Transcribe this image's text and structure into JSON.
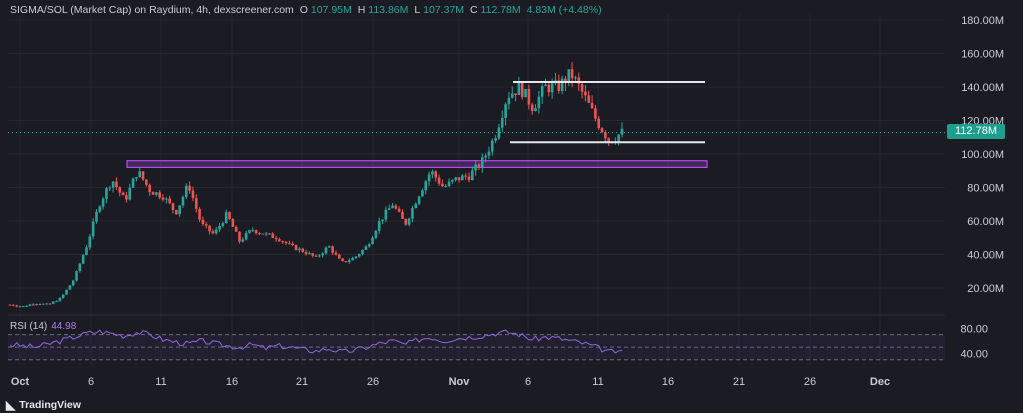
{
  "header": {
    "symbol": "SIGMA/SOL (Market Cap) on Raydium, 4h, dexscreener.com",
    "o_label": "O",
    "o_value": "107.95M",
    "h_label": "H",
    "h_value": "113.86M",
    "l_label": "L",
    "l_value": "107.37M",
    "c_label": "C",
    "c_value": "112.78M",
    "change": "4.83M (+4.48%)"
  },
  "rsi": {
    "label": "RSI (14)",
    "value": "44.98"
  },
  "last_price_tag": "112.78M",
  "branding": "TradingView",
  "colors": {
    "up": "#26a69a",
    "down": "#ef5350",
    "rsi": "#8e6ad8",
    "zone": "#b44ce8",
    "level": "#e6e6ea",
    "background": "#1b1b24",
    "grid": "#262633"
  },
  "chart_data": {
    "type": "candlestick",
    "x_tick_labels": [
      "Oct",
      "6",
      "11",
      "16",
      "21",
      "26",
      "Nov",
      "6",
      "11",
      "16",
      "21",
      "26",
      "Dec"
    ],
    "y_tick_labels": [
      "180.00M",
      "160.00M",
      "140.00M",
      "120.00M",
      "100.00M",
      "80.00M",
      "60.00M",
      "40.00M",
      "20.00M"
    ],
    "ylim": [
      0,
      190
    ],
    "y_unit": "M",
    "close_path": [
      [
        1,
        10
      ],
      [
        2,
        9
      ],
      [
        3,
        11
      ],
      [
        4,
        10
      ],
      [
        5,
        14
      ],
      [
        6,
        25
      ],
      [
        7,
        45
      ],
      [
        8,
        70
      ],
      [
        9,
        85
      ],
      [
        10,
        72
      ],
      [
        11,
        90
      ],
      [
        12,
        78
      ],
      [
        13,
        75
      ],
      [
        14,
        65
      ],
      [
        15,
        82
      ],
      [
        16,
        58
      ],
      [
        17,
        52
      ],
      [
        18,
        64
      ],
      [
        19,
        48
      ],
      [
        20,
        55
      ],
      [
        21,
        52
      ],
      [
        22,
        50
      ],
      [
        23,
        45
      ],
      [
        24,
        42
      ],
      [
        25,
        38
      ],
      [
        26,
        45
      ],
      [
        27,
        35
      ],
      [
        28,
        38
      ],
      [
        29,
        45
      ],
      [
        30,
        60
      ],
      [
        31,
        70
      ],
      [
        32,
        58
      ],
      [
        33,
        75
      ],
      [
        34,
        90
      ],
      [
        35,
        80
      ],
      [
        36,
        85
      ],
      [
        37,
        87
      ],
      [
        38,
        95
      ],
      [
        39,
        110
      ],
      [
        40,
        135
      ],
      [
        41,
        140
      ],
      [
        42,
        128
      ],
      [
        43,
        140
      ],
      [
        44,
        140
      ],
      [
        45,
        148
      ],
      [
        46,
        135
      ],
      [
        47,
        120
      ],
      [
        48,
        107.95
      ],
      [
        49,
        112.78
      ]
    ],
    "last_close": 112.78,
    "levels": [
      {
        "kind": "resistance",
        "value": 143
      },
      {
        "kind": "support",
        "value": 107
      }
    ],
    "zone": {
      "low": 92,
      "high": 96
    },
    "rsi": {
      "period": 14,
      "y_tick_labels": [
        "80.00",
        "40.00"
      ],
      "bands": [
        70,
        50,
        30
      ],
      "values": [
        54,
        52,
        50,
        55,
        60,
        66,
        72,
        75,
        72,
        68,
        74,
        70,
        62,
        58,
        55,
        60,
        56,
        52,
        50,
        54,
        48,
        52,
        50,
        46,
        44,
        48,
        42,
        45,
        50,
        56,
        60,
        54,
        62,
        66,
        60,
        64,
        66,
        68,
        72,
        74,
        70,
        62,
        66,
        64,
        60,
        56,
        50,
        42,
        44.98
      ]
    }
  }
}
